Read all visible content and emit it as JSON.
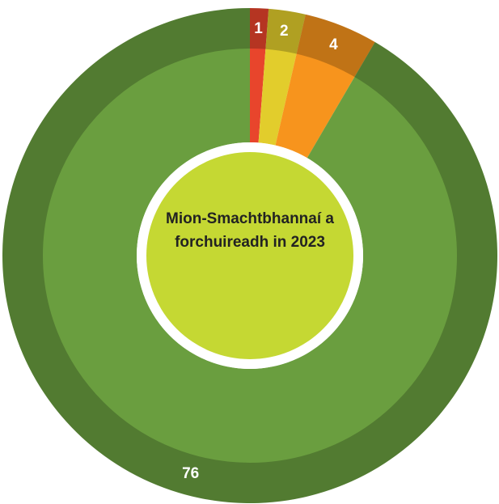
{
  "chart_data": {
    "type": "donut",
    "title": "Mion-Smachtbhannaí a forchuireadh in 2023",
    "values": [
      1,
      2,
      4,
      76
    ],
    "colors": [
      "#e8452c",
      "#e2cd2c",
      "#f7941d",
      "#6a9e3f"
    ],
    "center_color": "#c5d833"
  }
}
